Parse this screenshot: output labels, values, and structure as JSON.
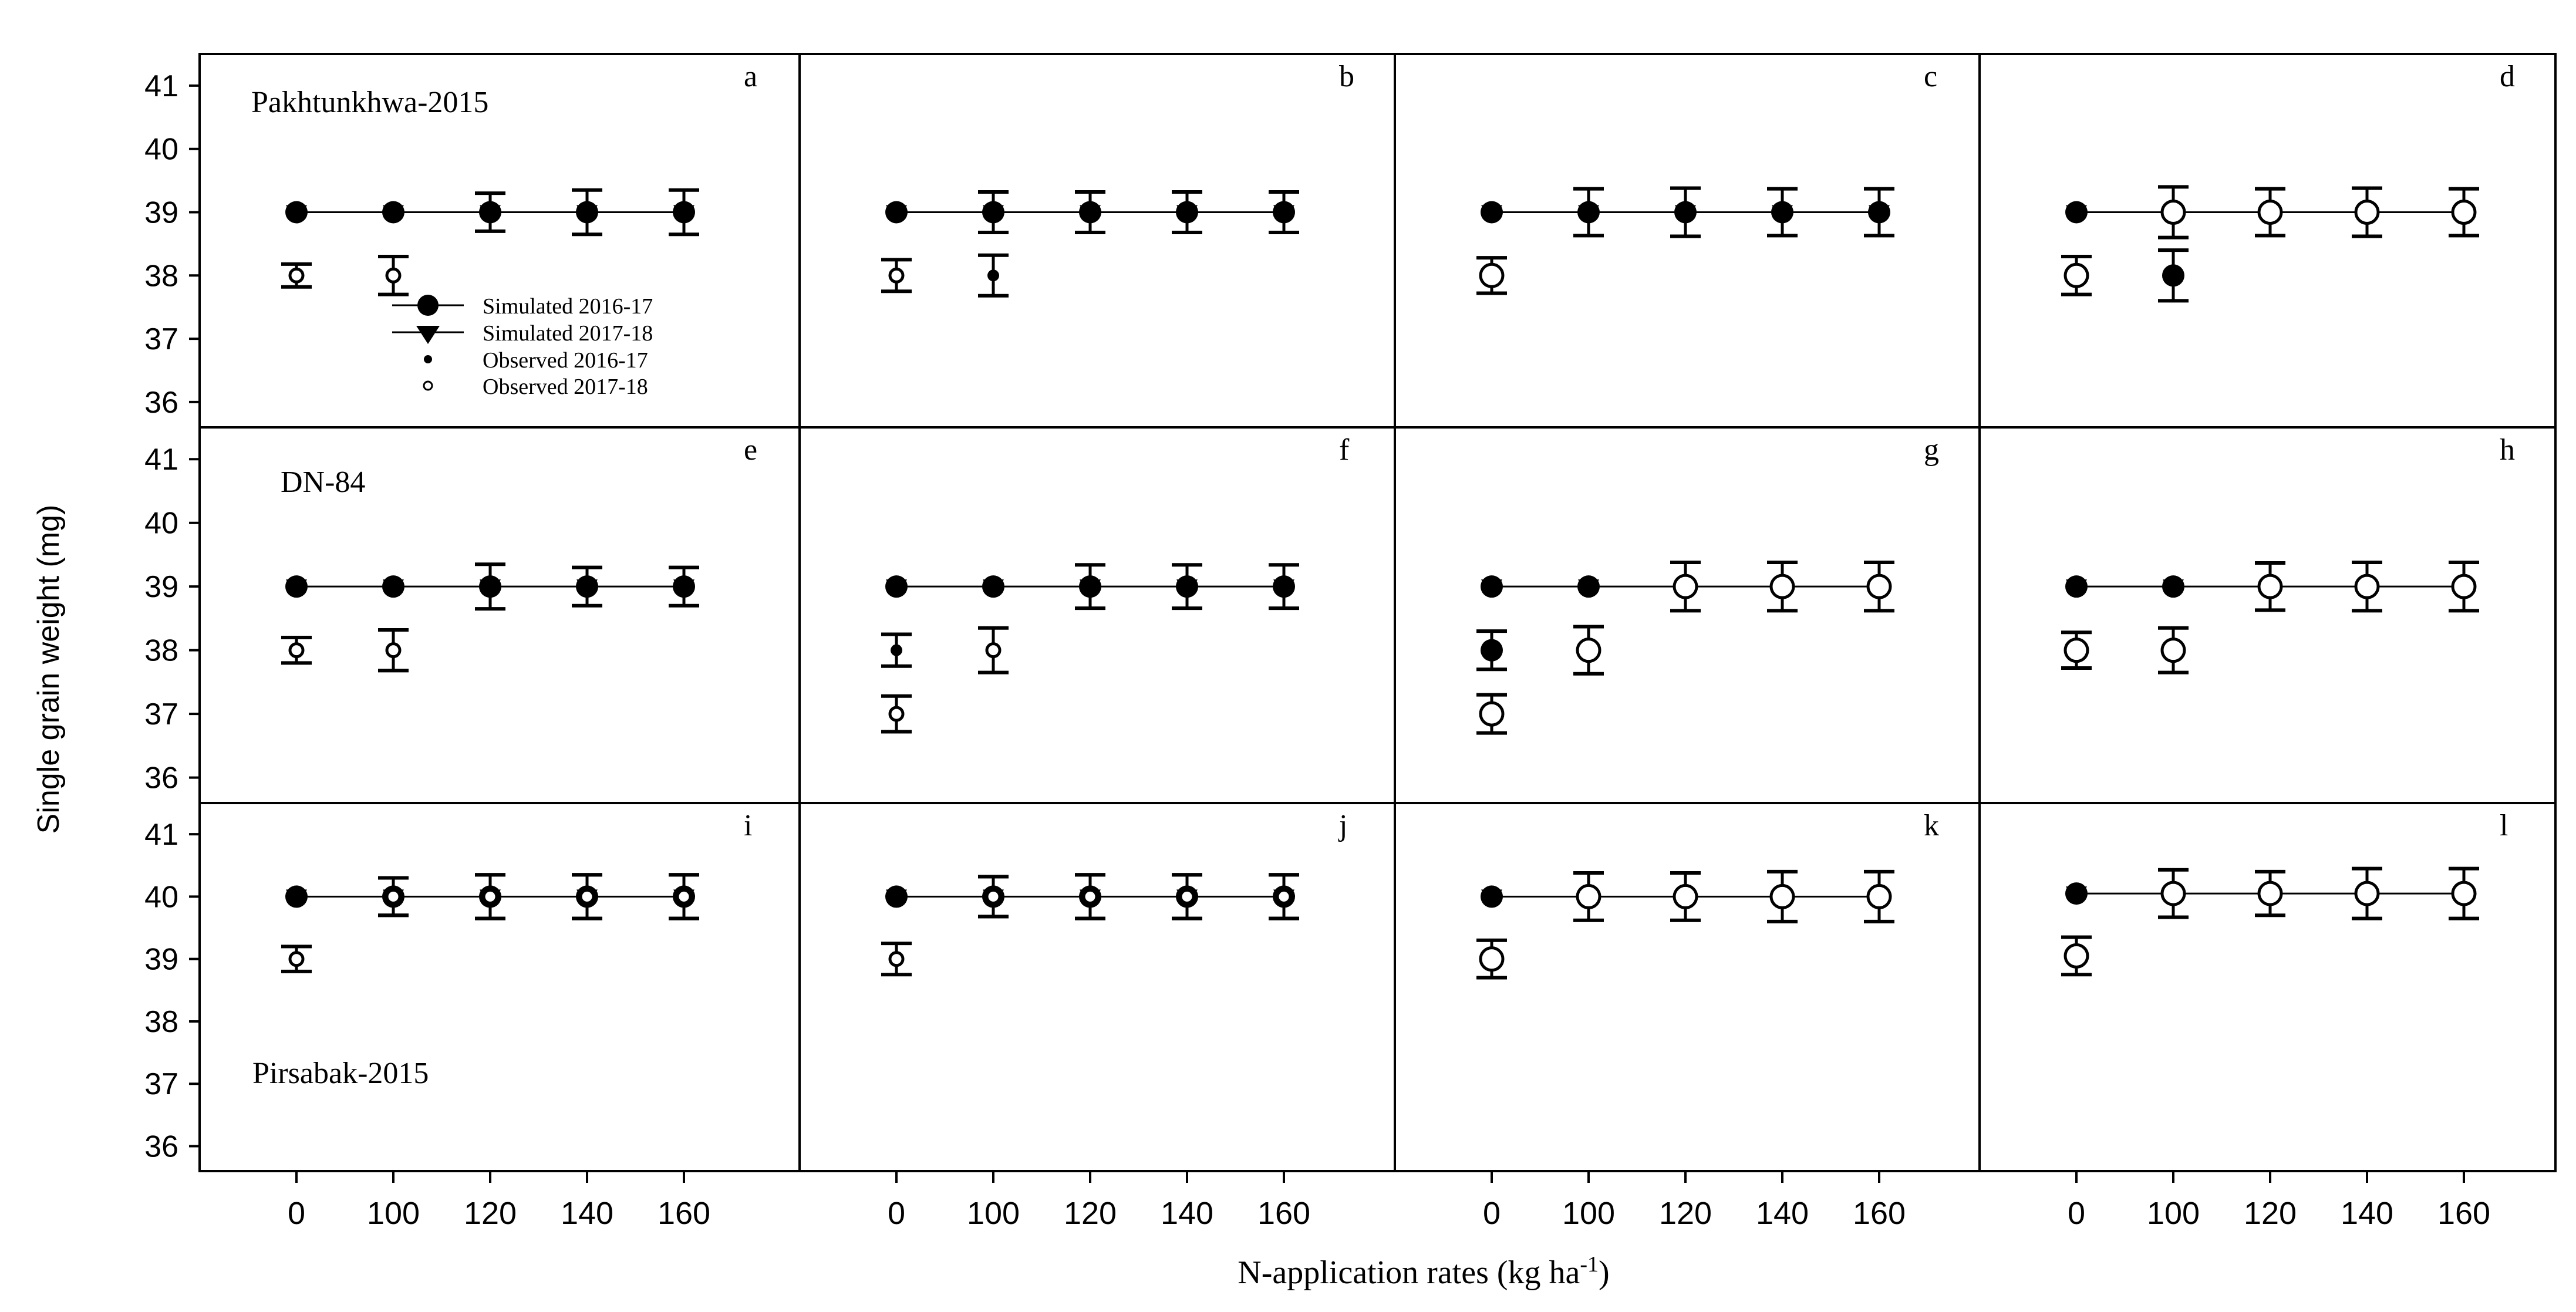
{
  "figure": {
    "y_axis_label": "Single grain weight (mg)",
    "x_axis_label": "N-application rates (kg ha",
    "x_axis_label_sup": "-1",
    "x_axis_label_end": ")"
  },
  "legend": {
    "entries": [
      "Simulated 2016-17",
      "Simulated 2017-18",
      "Observed 2016-17",
      "Observed 2017-18"
    ]
  },
  "row_labels": [
    "Pakhtunkhwa-2015",
    "DN-84",
    "Pirsabak-2015"
  ],
  "chart_data": {
    "type": "scatter",
    "layout": "3 rows x 4 columns of panels",
    "categories": [
      "0",
      "100",
      "120",
      "140",
      "160"
    ],
    "y_ticks": [
      36,
      37,
      38,
      39,
      40,
      41
    ],
    "ylim": [
      35.6,
      41.5
    ],
    "ylabel": "Single grain weight (mg)",
    "xlabel": "N-application rates (kg ha-1)",
    "panels": [
      {
        "letter": "a",
        "row": 0,
        "col": 0,
        "series": [
          {
            "name": "Simulated 2016-17",
            "values": [
              39,
              39,
              39,
              39,
              39
            ]
          },
          {
            "name": "Simulated 2017-18",
            "values": [
              39,
              39,
              39,
              39,
              39
            ]
          },
          {
            "name": "Observed 2016-17",
            "values": [
              null,
              null,
              null,
              null,
              null
            ]
          },
          {
            "name": "Observed 2017-18",
            "values": [
              38,
              38,
              null,
              null,
              null
            ],
            "error": [
              0.18,
              0.3,
              null,
              null,
              null
            ]
          }
        ],
        "sim_error": [
          0.05,
          0.05,
          0.3,
          0.35,
          0.35
        ]
      },
      {
        "letter": "b",
        "row": 0,
        "col": 1,
        "series": [
          {
            "name": "Simulated 2016-17",
            "values": [
              39,
              39,
              39,
              39,
              39
            ]
          },
          {
            "name": "Simulated 2017-18",
            "values": [
              39,
              39,
              39,
              39,
              39
            ]
          },
          {
            "name": "Observed 2016-17",
            "values": [
              null,
              38,
              null,
              null,
              null
            ],
            "error": [
              null,
              0.32,
              null,
              null,
              null
            ]
          },
          {
            "name": "Observed 2017-18",
            "values": [
              38,
              null,
              null,
              null,
              null
            ],
            "error": [
              0.25,
              null,
              null,
              null,
              null
            ]
          }
        ],
        "sim_error": [
          0.05,
          0.32,
          0.32,
          0.32,
          0.32
        ]
      },
      {
        "letter": "c",
        "row": 0,
        "col": 2,
        "series": [
          {
            "name": "Simulated 2016-17",
            "values": [
              39,
              39,
              39,
              39,
              39
            ]
          },
          {
            "name": "Simulated 2017-18",
            "values": [
              39,
              39,
              39,
              39,
              39
            ]
          },
          {
            "name": "Observed 2016-17",
            "values": [
              null,
              null,
              null,
              null,
              null
            ]
          },
          {
            "name": "Observed 2017-18",
            "values": [
              38,
              null,
              null,
              null,
              null
            ],
            "error": [
              0.28,
              null,
              null,
              null,
              null
            ]
          }
        ],
        "sim_error": [
          0.05,
          0.37,
          0.38,
          0.37,
          0.37
        ]
      },
      {
        "letter": "d",
        "row": 0,
        "col": 3,
        "series": [
          {
            "name": "Simulated 2016-17",
            "values": [
              39,
              null,
              null,
              null,
              null
            ]
          },
          {
            "name": "Simulated 2017-18",
            "values": [
              39,
              null,
              null,
              null,
              null
            ]
          },
          {
            "name": "Observed 2016-17",
            "values": [
              null,
              38,
              null,
              null,
              null
            ],
            "error": [
              null,
              0.4,
              null,
              null,
              null
            ]
          },
          {
            "name": "Observed 2017-18",
            "values": [
              38,
              39,
              39,
              39,
              39
            ],
            "error": [
              0.3,
              0.4,
              0.37,
              0.38,
              0.37
            ]
          }
        ],
        "sim_error": [
          0.05,
          null,
          null,
          null,
          null
        ]
      },
      {
        "letter": "e",
        "row": 1,
        "col": 0,
        "series": [
          {
            "name": "Simulated 2016-17",
            "values": [
              39,
              39,
              39,
              39,
              39
            ]
          },
          {
            "name": "Simulated 2017-18",
            "values": [
              39,
              39,
              39,
              39,
              39
            ]
          },
          {
            "name": "Observed 2016-17",
            "values": [
              null,
              null,
              null,
              null,
              null
            ]
          },
          {
            "name": "Observed 2017-18",
            "values": [
              38,
              38,
              null,
              null,
              null
            ],
            "error": [
              0.2,
              0.32,
              null,
              null,
              null
            ]
          }
        ],
        "sim_error": [
          0.05,
          0.05,
          0.35,
          0.3,
          0.3
        ]
      },
      {
        "letter": "f",
        "row": 1,
        "col": 1,
        "series": [
          {
            "name": "Simulated 2016-17",
            "values": [
              39,
              39,
              39,
              39,
              39
            ]
          },
          {
            "name": "Simulated 2017-18",
            "values": [
              39,
              39,
              39,
              39,
              39
            ]
          },
          {
            "name": "Observed 2016-17",
            "values": [
              38,
              null,
              null,
              null,
              null
            ],
            "error": [
              0.25,
              null,
              null,
              null,
              null
            ]
          },
          {
            "name": "Observed 2017-18",
            "values": [
              37,
              38,
              null,
              null,
              null
            ],
            "error": [
              0.28,
              0.35,
              null,
              null,
              null
            ]
          }
        ],
        "sim_error": [
          0.05,
          0.05,
          0.34,
          0.34,
          0.34
        ]
      },
      {
        "letter": "g",
        "row": 1,
        "col": 2,
        "series": [
          {
            "name": "Simulated 2016-17",
            "values": [
              39,
              39,
              null,
              null,
              null
            ]
          },
          {
            "name": "Simulated 2017-18",
            "values": [
              39,
              39,
              null,
              null,
              null
            ]
          },
          {
            "name": "Observed 2016-17",
            "values": [
              38,
              null,
              null,
              null,
              null
            ],
            "error": [
              0.3,
              null,
              null,
              null,
              null
            ]
          },
          {
            "name": "Observed 2017-18",
            "values": [
              37,
              38,
              39,
              39,
              39
            ],
            "error": [
              0.3,
              0.37,
              0.38,
              0.38,
              0.38
            ]
          }
        ],
        "sim_error": [
          0.05,
          0.05,
          null,
          null,
          null
        ]
      },
      {
        "letter": "h",
        "row": 1,
        "col": 3,
        "series": [
          {
            "name": "Simulated 2016-17",
            "values": [
              39,
              39,
              null,
              null,
              null
            ]
          },
          {
            "name": "Simulated 2017-18",
            "values": [
              39,
              39,
              null,
              null,
              null
            ]
          },
          {
            "name": "Observed 2016-17",
            "values": [
              null,
              null,
              null,
              null,
              null
            ]
          },
          {
            "name": "Observed 2017-18",
            "values": [
              38,
              38,
              39,
              39,
              39
            ],
            "error": [
              0.28,
              0.35,
              0.37,
              0.38,
              0.38
            ]
          }
        ],
        "sim_error": [
          0.05,
          0.05,
          null,
          null,
          null
        ]
      },
      {
        "letter": "i",
        "row": 2,
        "col": 0,
        "series": [
          {
            "name": "Simulated 2016-17",
            "values": [
              40,
              40,
              40,
              40,
              40
            ]
          },
          {
            "name": "Simulated 2017-18",
            "values": [
              40,
              40,
              40,
              40,
              40
            ]
          },
          {
            "name": "Observed 2016-17",
            "values": [
              null,
              null,
              null,
              null,
              null
            ]
          },
          {
            "name": "Observed 2017-18",
            "values": [
              39,
              40,
              40,
              40,
              40
            ],
            "error": [
              0.2,
              0.3,
              0.35,
              0.35,
              0.35
            ]
          }
        ],
        "sim_error": [
          0.05,
          0.3,
          0.35,
          0.35,
          0.35
        ]
      },
      {
        "letter": "j",
        "row": 2,
        "col": 1,
        "series": [
          {
            "name": "Simulated 2016-17",
            "values": [
              40,
              40,
              40,
              40,
              40
            ]
          },
          {
            "name": "Simulated 2017-18",
            "values": [
              40,
              40,
              40,
              40,
              40
            ]
          },
          {
            "name": "Observed 2016-17",
            "values": [
              null,
              null,
              null,
              null,
              null
            ]
          },
          {
            "name": "Observed 2017-18",
            "values": [
              39,
              40,
              40,
              40,
              40
            ],
            "error": [
              0.25,
              0.32,
              0.35,
              0.35,
              0.35
            ]
          }
        ],
        "sim_error": [
          0.05,
          0.32,
          0.35,
          0.35,
          0.35
        ]
      },
      {
        "letter": "k",
        "row": 2,
        "col": 2,
        "series": [
          {
            "name": "Simulated 2016-17",
            "values": [
              40,
              null,
              null,
              null,
              null
            ]
          },
          {
            "name": "Simulated 2017-18",
            "values": [
              40,
              null,
              null,
              null,
              null
            ]
          },
          {
            "name": "Observed 2016-17",
            "values": [
              null,
              null,
              null,
              null,
              null
            ]
          },
          {
            "name": "Observed 2017-18",
            "values": [
              39,
              40,
              40,
              40,
              40
            ],
            "error": [
              0.3,
              0.38,
              0.38,
              0.4,
              0.4
            ]
          }
        ],
        "sim_error": [
          0.05,
          null,
          null,
          null,
          null
        ]
      },
      {
        "letter": "l",
        "row": 2,
        "col": 3,
        "series": [
          {
            "name": "Simulated 2016-17",
            "values": [
              40.05,
              null,
              null,
              null,
              null
            ]
          },
          {
            "name": "Simulated 2017-18",
            "values": [
              40.05,
              null,
              null,
              null,
              null
            ]
          },
          {
            "name": "Observed 2016-17",
            "values": [
              null,
              null,
              null,
              null,
              null
            ]
          },
          {
            "name": "Observed 2017-18",
            "values": [
              39.05,
              40.05,
              40.05,
              40.05,
              40.05
            ],
            "error": [
              0.3,
              0.38,
              0.35,
              0.4,
              0.4
            ]
          }
        ],
        "sim_error": [
          0.05,
          null,
          null,
          null,
          null
        ]
      }
    ]
  }
}
